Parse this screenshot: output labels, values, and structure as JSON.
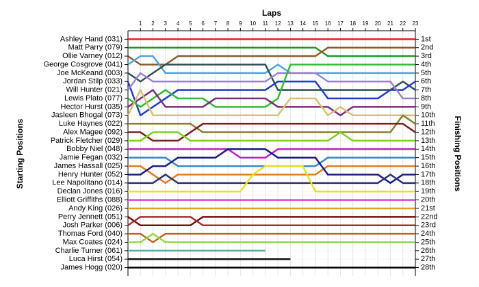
{
  "chart_data": {
    "type": "lap",
    "title": "Laps",
    "ylabel": "Starting Positions",
    "y2label": "Finishing Positions",
    "x": [
      0,
      1,
      2,
      3,
      4,
      5,
      6,
      7,
      8,
      9,
      10,
      11,
      12,
      13,
      14,
      15,
      16,
      17,
      18,
      19,
      20,
      21,
      22,
      23
    ],
    "xlim": [
      0,
      23
    ],
    "xticks": [
      1,
      2,
      3,
      4,
      5,
      6,
      7,
      8,
      9,
      10,
      11,
      12,
      13,
      14,
      15,
      16,
      17,
      18,
      19,
      20,
      21,
      22,
      23
    ],
    "ylim": [
      29,
      0
    ],
    "y2lim": [
      29,
      0
    ],
    "grid": true,
    "y2ticks": [
      {
        "value": 1,
        "label": "1st"
      },
      {
        "value": 2,
        "label": "2nd"
      },
      {
        "value": 3,
        "label": "3rd"
      },
      {
        "value": 4,
        "label": "4th"
      },
      {
        "value": 5,
        "label": "5th"
      },
      {
        "value": 6,
        "label": "6th"
      },
      {
        "value": 7,
        "label": "7th"
      },
      {
        "value": 8,
        "label": "8th"
      },
      {
        "value": 9,
        "label": "9th"
      },
      {
        "value": 10,
        "label": "10th"
      },
      {
        "value": 11,
        "label": "11th"
      },
      {
        "value": 12,
        "label": "12th"
      },
      {
        "value": 13,
        "label": "13th"
      },
      {
        "value": 14,
        "label": "14th"
      },
      {
        "value": 15,
        "label": "15th"
      },
      {
        "value": 16,
        "label": "16th"
      },
      {
        "value": 17,
        "label": "17th"
      },
      {
        "value": 18,
        "label": "18th"
      },
      {
        "value": 19,
        "label": "19th"
      },
      {
        "value": 20,
        "label": "20th"
      },
      {
        "value": 21,
        "label": "21st"
      },
      {
        "value": 22,
        "label": "22nd"
      },
      {
        "value": 23,
        "label": "23rd"
      },
      {
        "value": 24,
        "label": "24th"
      },
      {
        "value": 25,
        "label": "25th"
      },
      {
        "value": 26,
        "label": "26th"
      },
      {
        "value": 27,
        "label": "27th"
      },
      {
        "value": 28,
        "label": "28th"
      }
    ],
    "series": [
      {
        "name": "Ashley Hand (031)",
        "color": "#e02020",
        "values": [
          1,
          1,
          1,
          1,
          1,
          1,
          1,
          1,
          1,
          1,
          1,
          1,
          1,
          1,
          1,
          1,
          1,
          1,
          1,
          1,
          1,
          1,
          1,
          1
        ]
      },
      {
        "name": "Matt Parry (079)",
        "color": "#1a9a1a",
        "values": [
          2,
          2,
          2,
          2,
          2,
          2,
          2,
          2,
          2,
          2,
          2,
          2,
          2,
          2,
          2,
          2,
          3,
          3,
          3,
          3,
          3,
          3,
          3,
          3
        ]
      },
      {
        "name": "Ollie Varney (012)",
        "color": "#8b5a2b",
        "values": [
          3,
          4,
          4,
          4,
          3,
          3,
          3,
          3,
          3,
          3,
          3,
          3,
          3,
          3,
          3,
          3,
          2,
          2,
          2,
          2,
          2,
          2,
          2,
          2
        ]
      },
      {
        "name": "George Cosgrove (041)",
        "color": "#4aa3df",
        "values": [
          4,
          3,
          3,
          5,
          5,
          5,
          5,
          5,
          5,
          5,
          5,
          5,
          4,
          5,
          5,
          5,
          5,
          5,
          5,
          5,
          5,
          5,
          5,
          5
        ]
      },
      {
        "name": "Joe McKeand (003)",
        "color": "#2f4f4f",
        "values": [
          5,
          6,
          5,
          4,
          4,
          4,
          4,
          4,
          4,
          4,
          4,
          4,
          7,
          7,
          7,
          7,
          7,
          7,
          7,
          7,
          7,
          7,
          6,
          7
        ]
      },
      {
        "name": "Jordan Stilp (033)",
        "color": "#1f3fbf",
        "values": [
          6,
          10,
          9,
          8,
          7,
          7,
          7,
          7,
          7,
          7,
          7,
          7,
          6,
          6,
          6,
          6,
          8,
          8,
          8,
          8,
          8,
          7,
          7,
          6
        ]
      },
      {
        "name": "Will Hunter (021)",
        "color": "#9a7fd1",
        "values": [
          7,
          5,
          6,
          6,
          6,
          6,
          6,
          6,
          6,
          6,
          6,
          6,
          5,
          5,
          5,
          5,
          6,
          6,
          6,
          6,
          6,
          6,
          8,
          8
        ]
      },
      {
        "name": "Lewis Plato (077)",
        "color": "#33bb33",
        "values": [
          8,
          9,
          8,
          7,
          8,
          8,
          8,
          9,
          9,
          9,
          9,
          9,
          8,
          4,
          4,
          4,
          4,
          4,
          4,
          4,
          4,
          4,
          4,
          4
        ]
      },
      {
        "name": "Hector Hurst (035)",
        "color": "#7b2d7b",
        "values": [
          9,
          8,
          7,
          9,
          9,
          9,
          9,
          8,
          8,
          8,
          8,
          8,
          9,
          9,
          9,
          9,
          9,
          10,
          9,
          9,
          9,
          9,
          9,
          9
        ]
      },
      {
        "name": "Jasleen Bhogal (073)",
        "color": "#d8c070",
        "values": [
          10,
          7,
          10,
          10,
          10,
          10,
          10,
          10,
          10,
          10,
          10,
          10,
          10,
          8,
          8,
          8,
          10,
          9,
          10,
          10,
          10,
          10,
          10,
          10
        ]
      },
      {
        "name": "Luke Haynes (022)",
        "color": "#8b7d2b",
        "values": [
          11,
          11,
          11,
          11,
          11,
          11,
          12,
          12,
          12,
          12,
          12,
          12,
          12,
          12,
          12,
          12,
          12,
          12,
          12,
          12,
          12,
          12,
          10,
          11
        ]
      },
      {
        "name": "Alex Magee (092)",
        "color": "#7a1f1f",
        "values": [
          12,
          12,
          13,
          13,
          13,
          12,
          11,
          11,
          11,
          11,
          11,
          11,
          11,
          11,
          11,
          11,
          11,
          11,
          11,
          11,
          11,
          11,
          11,
          12
        ]
      },
      {
        "name": "Patrick Fletcher (029)",
        "color": "#7cd020",
        "values": [
          13,
          13,
          12,
          12,
          12,
          13,
          13,
          13,
          13,
          13,
          13,
          13,
          13,
          13,
          13,
          13,
          13,
          12,
          13,
          13,
          13,
          13,
          13,
          13
        ]
      },
      {
        "name": "Bobby Niel (048)",
        "color": "#c020c0",
        "values": [
          14,
          14,
          14,
          14,
          14,
          14,
          14,
          14,
          14,
          15,
          15,
          15,
          14,
          14,
          14,
          14,
          14,
          14,
          14,
          14,
          14,
          14,
          14,
          14
        ]
      },
      {
        "name": "Jamie Fegan (032)",
        "color": "#3a86c8",
        "values": [
          15,
          15,
          15,
          15,
          16,
          16,
          16,
          16,
          16,
          16,
          16,
          16,
          16,
          16,
          16,
          16,
          15,
          15,
          15,
          15,
          15,
          15,
          15,
          15
        ]
      },
      {
        "name": "James Hassall (025)",
        "color": "#e07b20",
        "values": [
          16,
          16,
          17,
          18,
          17,
          17,
          17,
          17,
          17,
          17,
          17,
          17,
          17,
          17,
          17,
          17,
          16,
          16,
          16,
          16,
          16,
          16,
          16,
          16
        ]
      },
      {
        "name": "Henry Hunter (052)",
        "color": "#1a1a80",
        "values": [
          17,
          17,
          16,
          16,
          15,
          15,
          15,
          15,
          14,
          14,
          14,
          14,
          15,
          15,
          15,
          15,
          17,
          17,
          17,
          17,
          17,
          18,
          17,
          17
        ]
      },
      {
        "name": "Lee Napolitano (014)",
        "color": "#303070",
        "values": [
          18,
          18,
          18,
          17,
          18,
          18,
          18,
          18,
          18,
          18,
          18,
          18,
          18,
          18,
          18,
          18,
          18,
          18,
          18,
          18,
          18,
          17,
          18,
          18
        ]
      },
      {
        "name": "Declan Jones (016)",
        "color": "#e8e020",
        "values": [
          19,
          19,
          19,
          19,
          19,
          19,
          19,
          19,
          19,
          19,
          17,
          16,
          16,
          16,
          16,
          19,
          19,
          19,
          19,
          19,
          19,
          19,
          19,
          19
        ]
      },
      {
        "name": "Elliott Griffiths (088)",
        "color": "#e040e0",
        "values": [
          20,
          20,
          20,
          20,
          20,
          20,
          20,
          20,
          20,
          20,
          20,
          20,
          20,
          20,
          20,
          20,
          20,
          20,
          20,
          20,
          20,
          20,
          20,
          20
        ]
      },
      {
        "name": "Andy King (026)",
        "color": "#e0a020",
        "values": [
          21,
          21,
          21,
          21,
          21,
          21,
          21,
          21,
          21,
          21,
          21,
          21,
          21,
          21,
          21,
          21,
          21,
          21,
          21,
          21,
          21,
          21,
          21,
          21
        ]
      },
      {
        "name": "Perry Jennett (051)",
        "color": "#701010",
        "values": [
          22,
          23,
          23,
          23,
          23,
          23,
          22,
          22,
          22,
          22,
          22,
          22,
          22,
          22,
          22,
          22,
          22,
          22,
          22,
          22,
          22,
          22,
          22,
          22
        ]
      },
      {
        "name": "Josh Parker (006)",
        "color": "#a03030",
        "values": [
          23,
          22,
          22,
          22,
          22,
          22,
          23,
          23,
          23,
          23,
          23,
          23,
          23,
          23,
          23,
          23,
          23,
          23,
          23,
          23,
          23,
          23,
          23,
          23
        ]
      },
      {
        "name": "Thomas Ford (040)",
        "color": "#c06020",
        "values": [
          24,
          24,
          25,
          24,
          24,
          24,
          24,
          24,
          24,
          24,
          24,
          24,
          24,
          24,
          24,
          24,
          24,
          24,
          24,
          24,
          24,
          24,
          24,
          24
        ]
      },
      {
        "name": "Max Coates (024)",
        "color": "#8bdc3c",
        "values": [
          25,
          25,
          24,
          25,
          25,
          25,
          25,
          25,
          25,
          25,
          25,
          25,
          25,
          25,
          25,
          25,
          25,
          25,
          25,
          25,
          25,
          25,
          25,
          25
        ]
      },
      {
        "name": "Charlie Turner (061)",
        "color": "#5fa8a0",
        "values": [
          26,
          26,
          26,
          26,
          26,
          26,
          26,
          26,
          26,
          26,
          26,
          26,
          null,
          null,
          null,
          null,
          null,
          null,
          null,
          null,
          null,
          null,
          null,
          null
        ]
      },
      {
        "name": "Luca Hirst (054)",
        "color": "#111111",
        "values": [
          27,
          27,
          27,
          27,
          27,
          27,
          27,
          27,
          27,
          27,
          27,
          27,
          27,
          27,
          null,
          null,
          null,
          null,
          null,
          null,
          null,
          null,
          null,
          null
        ]
      },
      {
        "name": "James Hogg (020)",
        "color": "#000000",
        "values": [
          28,
          28,
          28,
          28,
          28,
          28,
          28,
          28,
          28,
          28,
          28,
          28,
          28,
          28,
          28,
          28,
          28,
          28,
          28,
          28,
          28,
          28,
          28,
          28
        ]
      }
    ]
  }
}
